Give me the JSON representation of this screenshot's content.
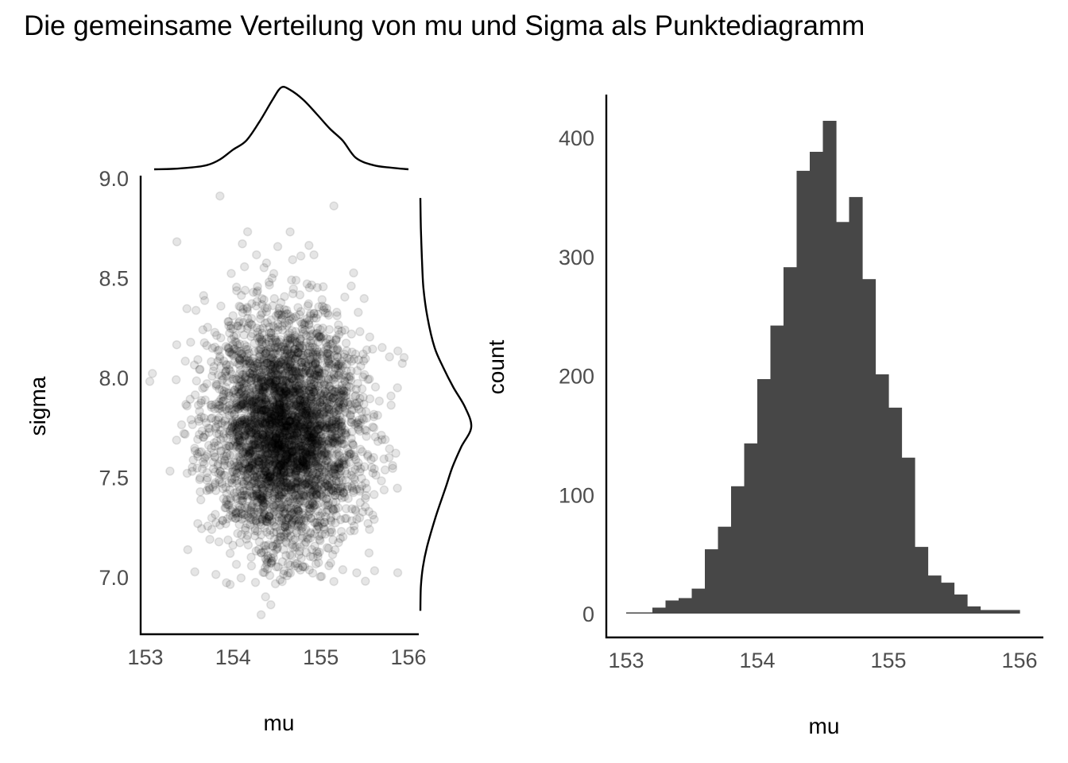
{
  "title": "Die gemeinsame Verteilung von mu und Sigma als Punktediagramm",
  "chart_data": [
    {
      "type": "scatter",
      "xlabel": "mu",
      "ylabel": "sigma",
      "xlim": [
        153,
        156
      ],
      "ylim": [
        6.8,
        9.0
      ],
      "xticks": [
        153,
        154,
        155,
        156
      ],
      "xtick_labels": [
        "153",
        "154",
        "155",
        "156"
      ],
      "yticks": [
        7.0,
        7.5,
        8.0,
        8.5,
        9.0
      ],
      "ytick_labels": [
        "7.0",
        "7.5",
        "8.0",
        "8.5",
        "9.0"
      ],
      "point_count": 4000,
      "point_alpha": 0.1,
      "point_distribution": {
        "mu_mean": 154.6,
        "mu_sd": 0.42,
        "sigma_mean": 7.73,
        "sigma_sd": 0.3
      },
      "outliers": [
        {
          "x": 153.85,
          "y": 8.91
        },
        {
          "x": 155.15,
          "y": 8.86
        },
        {
          "x": 154.32,
          "y": 6.81
        },
        {
          "x": 154.43,
          "y": 6.86
        },
        {
          "x": 154.37,
          "y": 6.9
        },
        {
          "x": 154.65,
          "y": 8.73
        },
        {
          "x": 153.08,
          "y": 8.02
        },
        {
          "x": 153.05,
          "y": 7.98
        },
        {
          "x": 155.95,
          "y": 8.1
        },
        {
          "x": 155.93,
          "y": 8.07
        },
        {
          "x": 153.28,
          "y": 7.53
        },
        {
          "x": 155.7,
          "y": 8.15
        },
        {
          "x": 155.55,
          "y": 7.12
        }
      ],
      "marginal_top": {
        "x": [
          153.1,
          153.3,
          153.5,
          153.7,
          153.85,
          154.0,
          154.15,
          154.3,
          154.45,
          154.55,
          154.65,
          154.8,
          154.95,
          155.1,
          155.25,
          155.4,
          155.6,
          155.8,
          156.0
        ],
        "density": [
          0.0,
          0.005,
          0.02,
          0.05,
          0.12,
          0.24,
          0.35,
          0.58,
          0.85,
          1.0,
          0.97,
          0.85,
          0.68,
          0.5,
          0.35,
          0.14,
          0.05,
          0.02,
          0.0
        ]
      },
      "marginal_right": {
        "y": [
          6.83,
          6.95,
          7.05,
          7.15,
          7.3,
          7.45,
          7.55,
          7.65,
          7.75,
          7.85,
          7.95,
          8.05,
          8.15,
          8.3,
          8.45,
          8.6,
          8.75,
          8.9
        ],
        "density": [
          0.0,
          0.01,
          0.05,
          0.13,
          0.3,
          0.5,
          0.63,
          0.8,
          1.0,
          0.88,
          0.65,
          0.45,
          0.28,
          0.14,
          0.06,
          0.03,
          0.01,
          0.0
        ]
      }
    },
    {
      "type": "histogram",
      "xlabel": "mu",
      "ylabel": "count",
      "xlim": [
        153,
        156
      ],
      "ylim": [
        0,
        430
      ],
      "xticks": [
        153,
        154,
        155,
        156
      ],
      "xtick_labels": [
        "153",
        "154",
        "155",
        "156"
      ],
      "yticks": [
        0,
        100,
        200,
        300,
        400
      ],
      "ytick_labels": [
        "0",
        "100",
        "200",
        "300",
        "400"
      ],
      "bin_start": 153.0,
      "bin_width": 0.1,
      "counts": [
        1,
        1,
        5,
        11,
        13,
        21,
        54,
        73,
        107,
        143,
        197,
        242,
        291,
        372,
        388,
        414,
        329,
        350,
        281,
        201,
        173,
        131,
        56,
        32,
        26,
        16,
        6,
        3,
        3,
        3
      ]
    }
  ]
}
